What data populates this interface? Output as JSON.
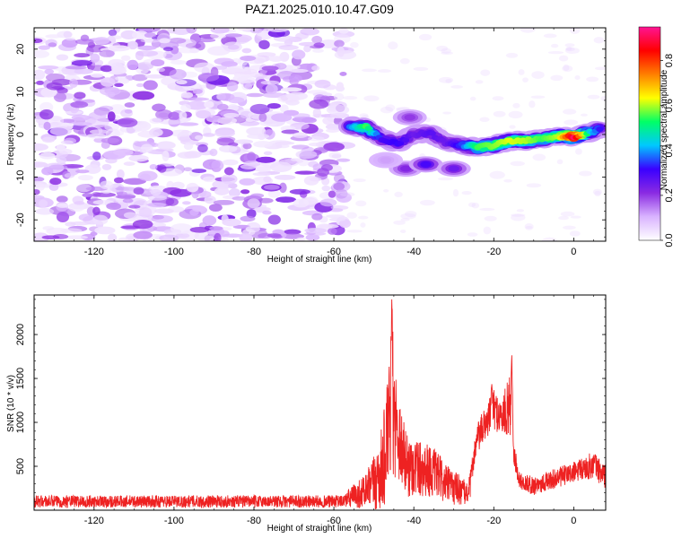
{
  "title": "PAZ1.2025.010.10.47.G09",
  "colors": {
    "snr_line": "#ee2222",
    "axis": "#000000",
    "background": "#ffffff",
    "colormap": [
      "#ffffff",
      "#d9b3ff",
      "#8a2be2",
      "#3a00ff",
      "#00c8ff",
      "#00ff66",
      "#ffff00",
      "#ff7f00",
      "#ff0000",
      "#ff1493"
    ]
  },
  "chart_data": [
    {
      "type": "heatmap",
      "title": "PAZ1.2025.010.10.47.G09",
      "xlabel": "Height of straight line (km)",
      "ylabel": "Frequency (Hz)",
      "xlim": [
        -135,
        8
      ],
      "ylim": [
        -25,
        25
      ],
      "x_ticks": [
        "-120",
        "-100",
        "-80",
        "-60",
        "-40",
        "-20",
        "0"
      ],
      "y_ticks": [
        "-20",
        "-10",
        "0",
        "10",
        "20"
      ],
      "colorbar": {
        "label": "Normalized spectral amplitude",
        "range": [
          0.0,
          0.95
        ],
        "ticks": [
          "0.0",
          "0.2",
          "0.4",
          "0.6",
          "0.8"
        ]
      },
      "noise_region": {
        "x_range": [
          -135,
          -57
        ],
        "y_range": [
          -25,
          25
        ],
        "amplitude_range": [
          0.02,
          0.15
        ]
      },
      "ridge": [
        {
          "x": -56,
          "y": 2,
          "a": 0.38
        },
        {
          "x": -52,
          "y": 1.5,
          "a": 0.55
        },
        {
          "x": -48,
          "y": -1,
          "a": 0.3
        },
        {
          "x": -44,
          "y": -2,
          "a": 0.32
        },
        {
          "x": -40,
          "y": 0,
          "a": 0.25
        },
        {
          "x": -36,
          "y": 0.5,
          "a": 0.28
        },
        {
          "x": -32,
          "y": -2,
          "a": 0.25
        },
        {
          "x": -28,
          "y": -2.5,
          "a": 0.35
        },
        {
          "x": -24,
          "y": -3,
          "a": 0.55
        },
        {
          "x": -20,
          "y": -2.5,
          "a": 0.58
        },
        {
          "x": -16,
          "y": -1.5,
          "a": 0.62
        },
        {
          "x": -12,
          "y": -1.5,
          "a": 0.6
        },
        {
          "x": -8,
          "y": -1,
          "a": 0.55
        },
        {
          "x": -4,
          "y": -0.5,
          "a": 0.6
        },
        {
          "x": 0,
          "y": -0.5,
          "a": 0.92
        },
        {
          "x": 4,
          "y": 0.5,
          "a": 0.45
        },
        {
          "x": 7,
          "y": 1.5,
          "a": 0.3
        }
      ],
      "side_lobes": [
        {
          "x": -41,
          "y": 4,
          "a": 0.2
        },
        {
          "x": -42,
          "y": -8,
          "a": 0.22
        },
        {
          "x": -37,
          "y": -7,
          "a": 0.3
        },
        {
          "x": -30,
          "y": -8,
          "a": 0.25
        },
        {
          "x": -47,
          "y": -6,
          "a": 0.12
        }
      ]
    },
    {
      "type": "line",
      "xlabel": "Height of straight line (km)",
      "ylabel": "SNR (10 * v/v)",
      "xlim": [
        -135,
        8
      ],
      "ylim": [
        0,
        2450
      ],
      "x_ticks": [
        "-120",
        "-100",
        "-80",
        "-60",
        "-40",
        "-20",
        "0"
      ],
      "y_ticks": [
        "500",
        "1000",
        "1500",
        "2000"
      ],
      "envelope": {
        "x": [
          -135,
          -58,
          -55,
          -52,
          -50,
          -48,
          -46.5,
          -45.5,
          -44,
          -42,
          -40,
          -38,
          -36,
          -34,
          -32,
          -30,
          -28,
          -27,
          -26,
          -25,
          -24,
          -22,
          -20,
          -18,
          -16,
          -15.5,
          -14,
          -13,
          -10,
          -6,
          -2,
          2,
          5,
          7,
          8
        ],
        "base": [
          100,
          100,
          160,
          220,
          300,
          450,
          850,
          1200,
          900,
          520,
          500,
          480,
          450,
          400,
          300,
          260,
          230,
          180,
          250,
          620,
          820,
          1000,
          1150,
          1050,
          1200,
          900,
          380,
          320,
          280,
          340,
          400,
          460,
          520,
          420,
          380
        ],
        "noise": [
          70,
          70,
          140,
          200,
          320,
          500,
          650,
          800,
          550,
          380,
          350,
          330,
          300,
          260,
          220,
          200,
          170,
          130,
          150,
          150,
          180,
          200,
          220,
          220,
          350,
          260,
          100,
          90,
          110,
          110,
          120,
          130,
          160,
          140,
          140
        ]
      },
      "peaks": [
        {
          "x": -45.5,
          "y": 2450
        },
        {
          "x": -15.5,
          "y": 1800
        },
        {
          "x": -20.5,
          "y": 1450
        }
      ]
    }
  ]
}
